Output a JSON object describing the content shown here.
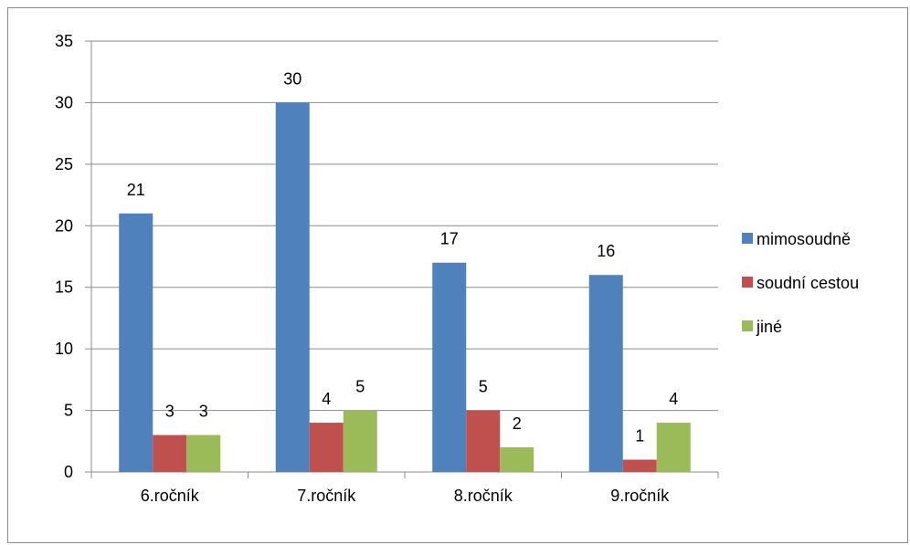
{
  "chart_data": {
    "type": "bar",
    "categories": [
      "6.ročník",
      "7.ročník",
      "8.ročník",
      "9.ročník"
    ],
    "series": [
      {
        "name": "mimosoudně",
        "color": "#4F81BD",
        "values": [
          21,
          30,
          17,
          16
        ]
      },
      {
        "name": "soudní cestou",
        "color": "#C0504D",
        "values": [
          3,
          4,
          5,
          1
        ]
      },
      {
        "name": "jiné",
        "color": "#9BBB59",
        "values": [
          3,
          5,
          2,
          4
        ]
      }
    ],
    "ylim": [
      0,
      35
    ],
    "yticks": [
      0,
      5,
      10,
      15,
      20,
      25,
      30,
      35
    ],
    "grid": true,
    "legend_position": "right",
    "data_labels": true
  }
}
